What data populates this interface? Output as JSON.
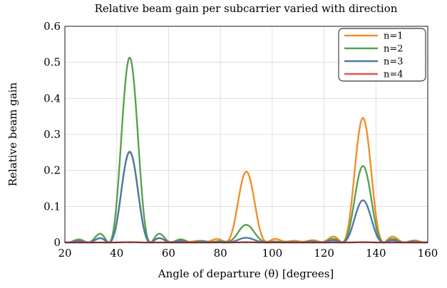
{
  "chart_data": {
    "type": "line",
    "title": "Relative beam gain per subcarrier varied with direction",
    "xlabel": "Angle of departure (θ) [degrees]",
    "ylabel": "Relative beam gain",
    "xlim": [
      20,
      160
    ],
    "ylim": [
      0,
      0.6
    ],
    "xticks": [
      "20",
      "40",
      "60",
      "80",
      "100",
      "120",
      "140",
      "160"
    ],
    "yticks": [
      "0",
      "0.1",
      "0.2",
      "0.3",
      "0.4",
      "0.5",
      "0.6"
    ],
    "grid": true,
    "legend_position": "top-right",
    "series": [
      {
        "name": "n=1",
        "color": "#f28e2b",
        "peaks": [
          {
            "x": 45,
            "y": 0.25
          },
          {
            "x": 90,
            "y": 0.195
          },
          {
            "x": 135,
            "y": 0.345
          }
        ]
      },
      {
        "name": "n=2",
        "color": "#59a14f",
        "peaks": [
          {
            "x": 45,
            "y": 0.513
          },
          {
            "x": 90,
            "y": 0.047
          },
          {
            "x": 135,
            "y": 0.212
          }
        ]
      },
      {
        "name": "n=3",
        "color": "#4e79a7",
        "peaks": [
          {
            "x": 45,
            "y": 0.252
          },
          {
            "x": 90,
            "y": 0.012
          },
          {
            "x": 135,
            "y": 0.117
          }
        ]
      },
      {
        "name": "n=4",
        "color": "#e15759",
        "peaks": [
          {
            "x": 45,
            "y": 0.001
          },
          {
            "x": 90,
            "y": 0.001
          },
          {
            "x": 135,
            "y": 0.001
          }
        ]
      }
    ]
  }
}
